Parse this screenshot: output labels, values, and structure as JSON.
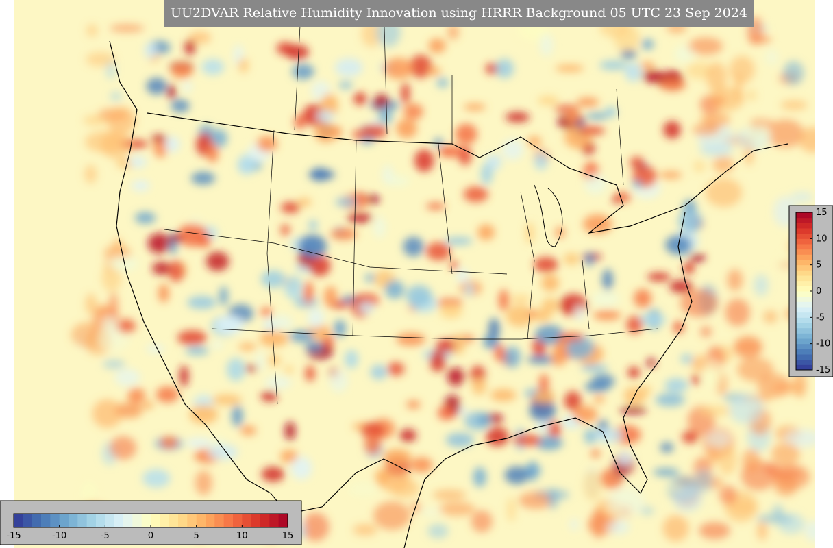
{
  "title": "UU2DVAR Relative Humidity Innovation using HRRR Background 05 UTC 23 Sep 2024",
  "colormap": [
    "#313695",
    "#4575b4",
    "#74add1",
    "#abd9e9",
    "#e0f3f8",
    "#ffffbf",
    "#fee090",
    "#fdae61",
    "#f46d43",
    "#d73027",
    "#a50026"
  ],
  "colorbar_horizontal": {
    "ticks": [
      -15,
      -10,
      -5,
      0,
      5,
      10,
      15
    ]
  },
  "colorbar_vertical": {
    "ticks": [
      15,
      10,
      5,
      0,
      -5,
      -10,
      -15
    ]
  }
}
